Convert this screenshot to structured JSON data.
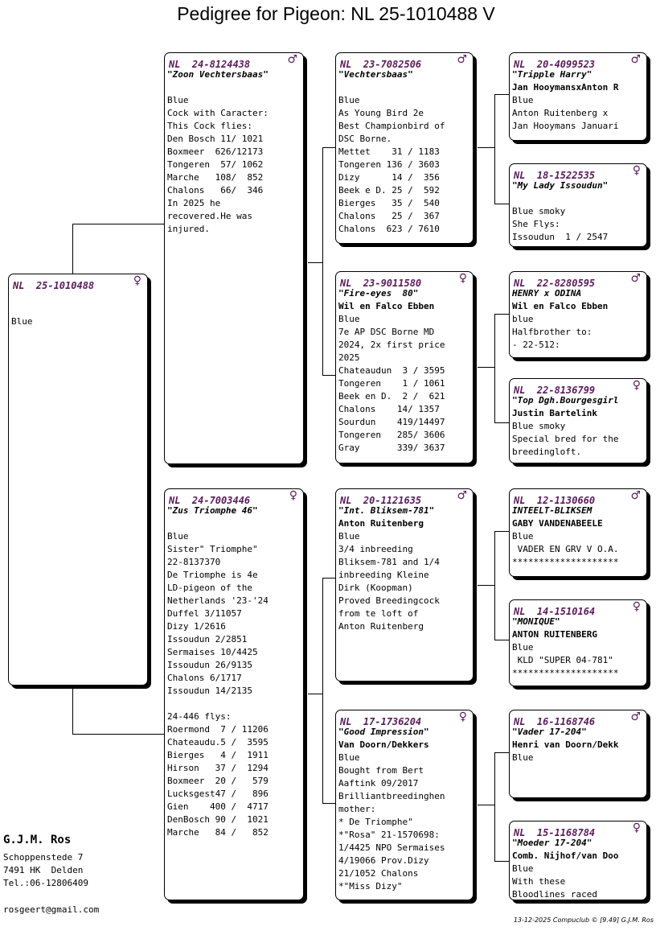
{
  "title": "Pedigree for Pigeon: NL  25-1010488 V",
  "male_symbol": "♂",
  "female_symbol": "♀",
  "cards": {
    "subject": {
      "ring": "NL  25-1010488",
      "sex": "female",
      "lines": [
        {
          "t": "",
          "s": "plain"
        },
        {
          "t": "",
          "s": "plain"
        },
        {
          "t": "Blue",
          "s": "plain"
        }
      ]
    },
    "sire": {
      "ring": "NL  24-8124438",
      "sex": "male",
      "lines": [
        {
          "t": "\"Zoon Vechtersbaas\"",
          "s": "ital"
        },
        {
          "t": "",
          "s": "plain"
        },
        {
          "t": "Blue",
          "s": "plain"
        },
        {
          "t": "Cock with Caracter:",
          "s": "plain"
        },
        {
          "t": "This Cock flies:",
          "s": "plain"
        },
        {
          "t": "Den Bosch 11/ 1021",
          "s": "plain"
        },
        {
          "t": "Boxmeer  626/12173",
          "s": "plain"
        },
        {
          "t": "Tongeren  57/ 1062",
          "s": "plain"
        },
        {
          "t": "Marche   108/  852",
          "s": "plain"
        },
        {
          "t": "Chalons   66/  346",
          "s": "plain"
        },
        {
          "t": "In 2025 he",
          "s": "plain"
        },
        {
          "t": "recovered.He was",
          "s": "plain"
        },
        {
          "t": "injured.",
          "s": "plain"
        }
      ]
    },
    "dam": {
      "ring": "NL  24-7003446",
      "sex": "female",
      "lines": [
        {
          "t": "\"Zus Triomphe 46\"",
          "s": "ital"
        },
        {
          "t": "",
          "s": "plain"
        },
        {
          "t": "Blue",
          "s": "plain"
        },
        {
          "t": "Sister\" Triomphe\"",
          "s": "plain"
        },
        {
          "t": "22-8137370",
          "s": "plain"
        },
        {
          "t": "De Triomphe is 4e",
          "s": "plain"
        },
        {
          "t": "LD-pigeon of the",
          "s": "plain"
        },
        {
          "t": "Netherlands '23-'24",
          "s": "plain"
        },
        {
          "t": "Duffel 3/11057",
          "s": "plain"
        },
        {
          "t": "Dizy 1/2616",
          "s": "plain"
        },
        {
          "t": "Issoudun 2/2851",
          "s": "plain"
        },
        {
          "t": "Sermaises 10/4425",
          "s": "plain"
        },
        {
          "t": "Issoudun 26/9135",
          "s": "plain"
        },
        {
          "t": "Chalons 6/1717",
          "s": "plain"
        },
        {
          "t": "Issoudun 14/2135",
          "s": "plain"
        },
        {
          "t": "",
          "s": "plain"
        },
        {
          "t": "24-446 flys:",
          "s": "plain"
        },
        {
          "t": "Roermond  7 / 11206",
          "s": "plain"
        },
        {
          "t": "Chateaudu.5 /  3595",
          "s": "plain"
        },
        {
          "t": "Bierges   4 /  1911",
          "s": "plain"
        },
        {
          "t": "Hirson   37 /  1294",
          "s": "plain"
        },
        {
          "t": "Boxmeer  20 /   579",
          "s": "plain"
        },
        {
          "t": "Lucksgest47 /   896",
          "s": "plain"
        },
        {
          "t": "Gien    400 /  4717",
          "s": "plain"
        },
        {
          "t": "DenBosch 90 /  1021",
          "s": "plain"
        },
        {
          "t": "Marche   84 /   852",
          "s": "plain"
        }
      ]
    },
    "ss": {
      "ring": "NL  23-7082506",
      "sex": "male",
      "lines": [
        {
          "t": "\"Vechtersbaas\"",
          "s": "ital"
        },
        {
          "t": "",
          "s": "plain"
        },
        {
          "t": "Blue",
          "s": "plain"
        },
        {
          "t": "As Young Bird 2e",
          "s": "plain"
        },
        {
          "t": "Best Championbird of",
          "s": "plain"
        },
        {
          "t": "DSC Borne.",
          "s": "plain"
        },
        {
          "t": "Mettet    31 / 1183",
          "s": "plain"
        },
        {
          "t": "Tongeren 136 / 3603",
          "s": "plain"
        },
        {
          "t": "Dizy      14 /  356",
          "s": "plain"
        },
        {
          "t": "Beek e D. 25 /  592",
          "s": "plain"
        },
        {
          "t": "Bierges   35 /  540",
          "s": "plain"
        },
        {
          "t": "Chalons   25 /  367",
          "s": "plain"
        },
        {
          "t": "Chalons  623 / 7610",
          "s": "plain"
        }
      ]
    },
    "sd": {
      "ring": "NL  23-9011580",
      "sex": "female",
      "lines": [
        {
          "t": "\"Fire-eyes  80\"",
          "s": "ital"
        },
        {
          "t": "Wil en Falco Ebben",
          "s": "bold"
        },
        {
          "t": "Blue",
          "s": "plain"
        },
        {
          "t": "7e AP DSC Borne MD",
          "s": "plain"
        },
        {
          "t": "2024, 2x first price",
          "s": "plain"
        },
        {
          "t": "2025",
          "s": "plain"
        },
        {
          "t": "Chateaudun  3 / 3595",
          "s": "plain"
        },
        {
          "t": "Tongeren    1 / 1061",
          "s": "plain"
        },
        {
          "t": "Beek en D.  2 /  621",
          "s": "plain"
        },
        {
          "t": "Chalons    14/ 1357",
          "s": "plain"
        },
        {
          "t": "Sourdun    419/14497",
          "s": "plain"
        },
        {
          "t": "Tongeren   285/ 3606",
          "s": "plain"
        },
        {
          "t": "Gray       339/ 3637",
          "s": "plain"
        }
      ]
    },
    "ds": {
      "ring": "NL  20-1121635",
      "sex": "male",
      "lines": [
        {
          "t": "\"Int. Bliksem-781\"",
          "s": "ital"
        },
        {
          "t": "Anton Ruitenberg",
          "s": "bold"
        },
        {
          "t": "Blue",
          "s": "plain"
        },
        {
          "t": "3/4 inbreeding",
          "s": "plain"
        },
        {
          "t": "Bliksem-781 and 1/4",
          "s": "plain"
        },
        {
          "t": "inbreeding Kleine",
          "s": "plain"
        },
        {
          "t": "Dirk (Koopman)",
          "s": "plain"
        },
        {
          "t": "Proved Breedingcock",
          "s": "plain"
        },
        {
          "t": "from te loft of",
          "s": "plain"
        },
        {
          "t": "Anton Ruitenberg",
          "s": "plain"
        }
      ]
    },
    "dd": {
      "ring": "NL  17-1736204",
      "sex": "female",
      "lines": [
        {
          "t": "\"Good Impression\"",
          "s": "ital"
        },
        {
          "t": "Van Doorn/Dekkers",
          "s": "bold"
        },
        {
          "t": "Blue",
          "s": "plain"
        },
        {
          "t": "Bought from Bert",
          "s": "plain"
        },
        {
          "t": "Aaftink 09/2017",
          "s": "plain"
        },
        {
          "t": "Brilliantbreedinghen",
          "s": "plain"
        },
        {
          "t": "mother:",
          "s": "plain"
        },
        {
          "t": "* De Triomphe\"",
          "s": "plain"
        },
        {
          "t": "*\"Rosa\" 21-1570698:",
          "s": "plain"
        },
        {
          "t": "1/4425 NPO Sermaises",
          "s": "plain"
        },
        {
          "t": "4/19066 Prov.Dizy",
          "s": "plain"
        },
        {
          "t": "21/1052 Chalons",
          "s": "plain"
        },
        {
          "t": "*\"Miss Dizy\"",
          "s": "plain"
        }
      ]
    },
    "sss": {
      "ring": "NL  20-4099523",
      "sex": "male",
      "lines": [
        {
          "t": "\"Tripple Harry\"",
          "s": "ital"
        },
        {
          "t": "Jan HooymansxAnton R",
          "s": "bold"
        },
        {
          "t": "Blue",
          "s": "plain"
        },
        {
          "t": "Anton Ruitenberg x",
          "s": "plain"
        },
        {
          "t": "Jan Hooymans Januari",
          "s": "plain"
        }
      ]
    },
    "ssd": {
      "ring": "NL  18-1522535",
      "sex": "female",
      "lines": [
        {
          "t": "\"My Lady Issoudun\"",
          "s": "ital"
        },
        {
          "t": "",
          "s": "plain"
        },
        {
          "t": "Blue smoky",
          "s": "plain"
        },
        {
          "t": "She Flys:",
          "s": "plain"
        },
        {
          "t": "Issoudun  1 / 2547",
          "s": "plain"
        }
      ]
    },
    "sds": {
      "ring": "NL  22-8280595",
      "sex": "male",
      "lines": [
        {
          "t": "HENRY x ODINA",
          "s": "ital"
        },
        {
          "t": "Wil en Falco Ebben",
          "s": "bold"
        },
        {
          "t": "blue",
          "s": "plain"
        },
        {
          "t": "Halfbrother to:",
          "s": "plain"
        },
        {
          "t": "- 22-512:",
          "s": "plain"
        }
      ]
    },
    "sdd": {
      "ring": "NL  22-8136799",
      "sex": "female",
      "lines": [
        {
          "t": "\"Top Dgh.Bourgesgirl",
          "s": "ital"
        },
        {
          "t": "Justin Bartelink",
          "s": "bold"
        },
        {
          "t": "Blue smoky",
          "s": "plain"
        },
        {
          "t": "Special bred for the",
          "s": "plain"
        },
        {
          "t": "breedingloft.",
          "s": "plain"
        }
      ]
    },
    "dss": {
      "ring": "NL  12-1130660",
      "sex": "male",
      "lines": [
        {
          "t": "INTEELT-BLIKSEM",
          "s": "ital"
        },
        {
          "t": "GABY VANDENABEELE",
          "s": "bold"
        },
        {
          "t": "Blue",
          "s": "plain"
        },
        {
          "t": " VADER EN GRV V O.A.",
          "s": "plain"
        },
        {
          "t": "********************",
          "s": "plain"
        }
      ]
    },
    "dsd": {
      "ring": "NL  14-1510164",
      "sex": "female",
      "lines": [
        {
          "t": "\"MONIQUE\"",
          "s": "ital"
        },
        {
          "t": "ANTON RUITENBERG",
          "s": "bold"
        },
        {
          "t": "Blue",
          "s": "plain"
        },
        {
          "t": " KLD \"SUPER 04-781\"",
          "s": "plain"
        },
        {
          "t": "********************",
          "s": "plain"
        }
      ]
    },
    "dds": {
      "ring": "NL  16-1168746",
      "sex": "male",
      "lines": [
        {
          "t": "\"Vader 17-204\"",
          "s": "ital"
        },
        {
          "t": "Henri van Doorn/Dekk",
          "s": "bold"
        },
        {
          "t": "Blue",
          "s": "plain"
        }
      ]
    },
    "ddd": {
      "ring": "NL  15-1168784",
      "sex": "female",
      "lines": [
        {
          "t": "\"Moeder 17-204\"",
          "s": "ital"
        },
        {
          "t": "Comb. Nijhof/van Doo",
          "s": "bold"
        },
        {
          "t": "Blue",
          "s": "plain"
        },
        {
          "t": "With these",
          "s": "plain"
        },
        {
          "t": "Bloodlines raced",
          "s": "plain"
        }
      ]
    }
  },
  "owner": {
    "name": "G.J.M. Ros",
    "address1": "Schoppenstede 7",
    "address2": "7491 HK  Delden",
    "phone": "Tel.:06-12806409",
    "email": "rosgeert@gmail.com"
  },
  "footer": "13-12-2025   Compuclub © [9.49]  G.J.M. Ros"
}
